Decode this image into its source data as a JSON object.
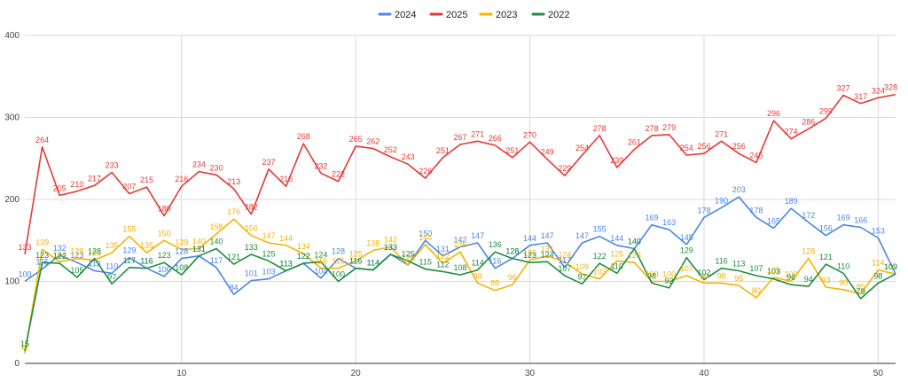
{
  "chart_data": {
    "type": "line",
    "title": "",
    "xlabel": "",
    "ylabel": "",
    "xlim": [
      1,
      51
    ],
    "ylim": [
      0,
      400
    ],
    "x_ticks": [
      10,
      20,
      30,
      40,
      50
    ],
    "y_ticks": [
      0,
      100,
      200,
      300,
      400
    ],
    "grid": true,
    "legend_position": "top-center",
    "x": [
      1,
      2,
      3,
      4,
      5,
      6,
      7,
      8,
      9,
      10,
      11,
      12,
      13,
      14,
      15,
      16,
      17,
      18,
      19,
      20,
      21,
      22,
      23,
      24,
      25,
      26,
      27,
      28,
      29,
      30,
      31,
      32,
      33,
      34,
      35,
      36,
      37,
      38,
      39,
      40,
      41,
      42,
      43,
      44,
      45,
      46,
      47,
      48,
      49,
      50,
      51
    ],
    "series": [
      {
        "name": "2024",
        "color": "#4a86e8",
        "values": [
          100,
          115,
          132,
          123,
          113,
          110,
          129,
          116,
          106,
          128,
          131,
          117,
          84,
          101,
          103,
          113,
          122,
          104,
          128,
          116,
          114,
          133,
          120,
          150,
          131,
          142,
          147,
          116,
          128,
          144,
          147,
          117,
          147,
          155,
          144,
          140,
          169,
          163,
          145,
          178,
          190,
          203,
          178,
          165,
          189,
          172,
          156,
          169,
          166,
          153,
          109
        ]
      },
      {
        "name": "2025",
        "color": "#e53935",
        "values": [
          133,
          264,
          205,
          210,
          217,
          233,
          207,
          215,
          180,
          216,
          234,
          230,
          213,
          182,
          237,
          216,
          268,
          232,
          222,
          265,
          262,
          252,
          243,
          226,
          251,
          267,
          271,
          266,
          251,
          270,
          249,
          229,
          254,
          278,
          239,
          261,
          278,
          279,
          254,
          256,
          271,
          256,
          245,
          296,
          274,
          286,
          299,
          327,
          317,
          324,
          328
        ]
      },
      {
        "name": "2023",
        "color": "#f4b400",
        "values": [
          12,
          139,
          124,
          128,
          126,
          135,
          155,
          135,
          150,
          139,
          140,
          158,
          176,
          156,
          147,
          144,
          134,
          116,
          116,
          125,
          138,
          142,
          120,
          145,
          122,
          136,
          98,
          89,
          96,
          126,
          131,
          124,
          109,
          103,
          125,
          123,
          100,
          100,
          107,
          98,
          98,
          95,
          80,
          105,
          100,
          128,
          93,
          90,
          85,
          114,
          109
        ]
      },
      {
        "name": "2022",
        "color": "#1e8e3e",
        "values": [
          15,
          123,
          122,
          105,
          128,
          97,
          117,
          116,
          123,
          108,
          131,
          140,
          121,
          133,
          125,
          113,
          122,
          124,
          100,
          116,
          114,
          133,
          125,
          115,
          112,
          108,
          114,
          136,
          128,
          123,
          124,
          107,
          97,
          122,
          110,
          140,
          98,
          92,
          129,
          102,
          116,
          113,
          107,
          103,
          96,
          94,
          121,
          110,
          79,
          98,
          109
        ]
      }
    ],
    "data_labels_shown": true
  }
}
